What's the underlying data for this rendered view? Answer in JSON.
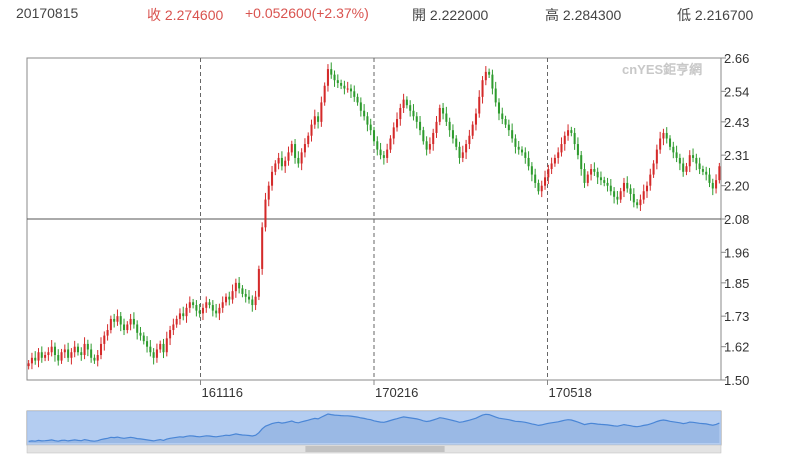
{
  "header": {
    "date": "20170815",
    "close": "收 2.274600",
    "change": "+0.052600(+2.37%)",
    "open": "開 2.222000",
    "high": "高 2.284300",
    "low": "低 2.216700"
  },
  "watermark": "cnYES鉅亨網",
  "colors": {
    "up": "#d42a2a",
    "down": "#2e9b2e",
    "navigator_fill": "#a9c6ee",
    "navigator_line": "#4a86d6"
  },
  "chart_data": {
    "type": "line",
    "title": "",
    "xlabel": "",
    "ylabel": "",
    "ylim": [
      1.5,
      2.66
    ],
    "yticks": [
      "2.66",
      "2.54",
      "2.43",
      "2.31",
      "2.20",
      "2.08",
      "1.96",
      "1.85",
      "1.73",
      "1.62",
      "1.50"
    ],
    "reference_line": 2.08,
    "grid": "dashed vertical lines at x tick labels",
    "xticks": [
      "161116",
      "170216",
      "170518"
    ],
    "series": [
      {
        "values": [
          1.56,
          1.58,
          1.57,
          1.6,
          1.58,
          1.59,
          1.6,
          1.62,
          1.59,
          1.57,
          1.6,
          1.61,
          1.58,
          1.6,
          1.62,
          1.6,
          1.59,
          1.63,
          1.61,
          1.58,
          1.57,
          1.59,
          1.63,
          1.66,
          1.68,
          1.72,
          1.71,
          1.73,
          1.7,
          1.68,
          1.7,
          1.72,
          1.7,
          1.67,
          1.66,
          1.64,
          1.62,
          1.6,
          1.58,
          1.61,
          1.63,
          1.6,
          1.65,
          1.68,
          1.7,
          1.72,
          1.74,
          1.73,
          1.76,
          1.78,
          1.77,
          1.75,
          1.74,
          1.76,
          1.78,
          1.77,
          1.75,
          1.74,
          1.76,
          1.78,
          1.8,
          1.79,
          1.82,
          1.85,
          1.83,
          1.81,
          1.8,
          1.79,
          1.77,
          1.8,
          1.9,
          2.05,
          2.15,
          2.2,
          2.25,
          2.28,
          2.3,
          2.27,
          2.29,
          2.32,
          2.35,
          2.3,
          2.28,
          2.32,
          2.35,
          2.38,
          2.42,
          2.45,
          2.43,
          2.5,
          2.56,
          2.62,
          2.6,
          2.58,
          2.57,
          2.56,
          2.55,
          2.55,
          2.54,
          2.52,
          2.5,
          2.47,
          2.45,
          2.42,
          2.4,
          2.36,
          2.33,
          2.31,
          2.3,
          2.33,
          2.37,
          2.41,
          2.44,
          2.48,
          2.51,
          2.49,
          2.47,
          2.45,
          2.43,
          2.4,
          2.36,
          2.33,
          2.35,
          2.39,
          2.43,
          2.48,
          2.46,
          2.43,
          2.4,
          2.37,
          2.34,
          2.3,
          2.32,
          2.35,
          2.38,
          2.42,
          2.46,
          2.52,
          2.58,
          2.61,
          2.6,
          2.55,
          2.5,
          2.46,
          2.44,
          2.42,
          2.4,
          2.37,
          2.34,
          2.33,
          2.32,
          2.3,
          2.27,
          2.24,
          2.21,
          2.18,
          2.2,
          2.23,
          2.26,
          2.28,
          2.3,
          2.32,
          2.35,
          2.38,
          2.4,
          2.39,
          2.35,
          2.31,
          2.26,
          2.21,
          2.24,
          2.26,
          2.25,
          2.23,
          2.22,
          2.21,
          2.2,
          2.18,
          2.16,
          2.15,
          2.18,
          2.21,
          2.19,
          2.17,
          2.14,
          2.13,
          2.15,
          2.18,
          2.2,
          2.24,
          2.28,
          2.33,
          2.37,
          2.39,
          2.37,
          2.34,
          2.32,
          2.3,
          2.28,
          2.25,
          2.27,
          2.31,
          2.3,
          2.28,
          2.26,
          2.25,
          2.24,
          2.21,
          2.19,
          2.22,
          2.27
        ]
      }
    ]
  }
}
